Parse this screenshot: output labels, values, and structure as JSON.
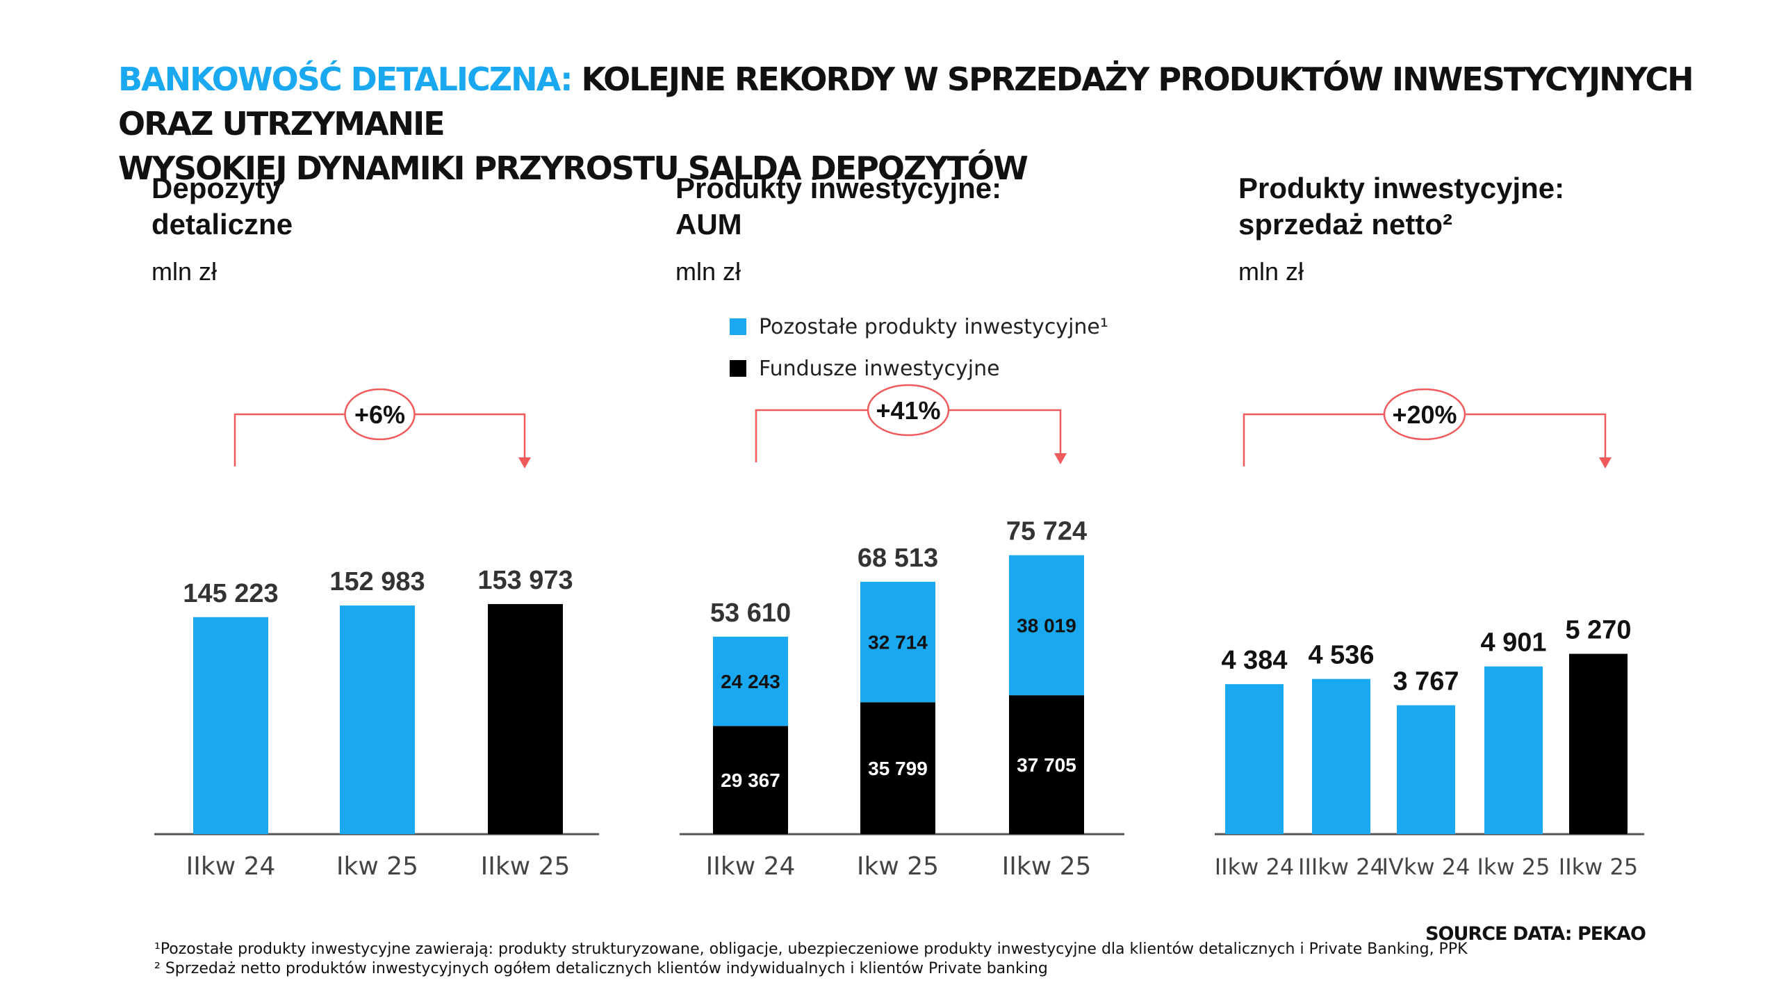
{
  "headline": {
    "accent": "BANKOWOŚĆ DETALICZNA:",
    "line1_rest": "KOLEJNE REKORDY W SPRZEDAŻY PRODUKTÓW INWESTYCYJNYCH ORAZ UTRZYMANIE",
    "line2": "WYSOKIEJ DYNAMIKI PRZYROSTU SALDA DEPOZYTÓW"
  },
  "colors": {
    "blue": "#1aa9f0",
    "black": "#000000",
    "red": "#f05a5a",
    "axis": "#555555"
  },
  "panels": [
    {
      "title_line1": "Depozyty",
      "title_line2": "detaliczne",
      "unit": "mln zł"
    },
    {
      "title_line1": "Produkty inwestycyjne:",
      "title_line2": "AUM",
      "unit": "mln zł"
    },
    {
      "title_line1": "Produkty inwestycyjne:",
      "title_line2": "sprzedaż netto²",
      "unit": "mln zł"
    }
  ],
  "legend": {
    "other": "Pozostałe produkty inwestycyjne¹",
    "funds": "Fundusze inwestycyjne"
  },
  "chart_data": [
    {
      "type": "bar",
      "title": "Depozyty detaliczne",
      "ylabel": "mln zł",
      "categories": [
        "IIkw 24",
        "Ikw 25",
        "IIkw 25"
      ],
      "values": [
        145223,
        152983,
        153973
      ],
      "value_labels": [
        "145 223",
        "152 983",
        "153 973"
      ],
      "bar_colors": [
        "blue",
        "blue",
        "black"
      ],
      "ylim": [
        0,
        200000
      ],
      "annotation": "+6%"
    },
    {
      "type": "bar",
      "stacked": true,
      "title": "Produkty inwestycyjne: AUM",
      "ylabel": "mln zł",
      "categories": [
        "IIkw 24",
        "Ikw 25",
        "IIkw 25"
      ],
      "series": [
        {
          "name": "Fundusze inwestycyjne",
          "color": "black",
          "values": [
            29367,
            35799,
            37705
          ],
          "labels": [
            "29 367",
            "35 799",
            "37 705"
          ]
        },
        {
          "name": "Pozostałe produkty inwestycyjne",
          "color": "blue",
          "values": [
            24243,
            32714,
            38019
          ],
          "labels": [
            "24 243",
            "32 714",
            "38 019"
          ]
        }
      ],
      "totals": [
        53610,
        68513,
        75724
      ],
      "total_labels": [
        "53 610",
        "68 513",
        "75 724"
      ],
      "ylim": [
        0,
        100000
      ],
      "annotation": "+41%"
    },
    {
      "type": "bar",
      "title": "Produkty inwestycyjne: sprzedaż netto",
      "ylabel": "mln zł",
      "categories": [
        "IIkw 24",
        "IIIkw 24",
        "IVkw 24",
        "Ikw 25",
        "IIkw 25"
      ],
      "values": [
        4384,
        4536,
        3767,
        4901,
        5270
      ],
      "value_labels": [
        "4 384",
        "4 536",
        "3 767",
        "4 901",
        "5 270"
      ],
      "bar_colors": [
        "blue",
        "blue",
        "blue",
        "blue",
        "black"
      ],
      "ylim": [
        0,
        6500
      ],
      "annotation": "+20%"
    }
  ],
  "footnotes": {
    "note1": "¹Pozostałe produkty inwestycyjne zawierają: produkty strukturyzowane, obligacje, ubezpieczeniowe produkty inwestycyjne dla klientów detalicznych i Private Banking, PPK",
    "note2": "² Sprzedaż netto produktów inwestycyjnych ogółem detalicznych klientów indywidualnych i klientów Private banking"
  },
  "source": "SOURCE DATA: PEKAO"
}
